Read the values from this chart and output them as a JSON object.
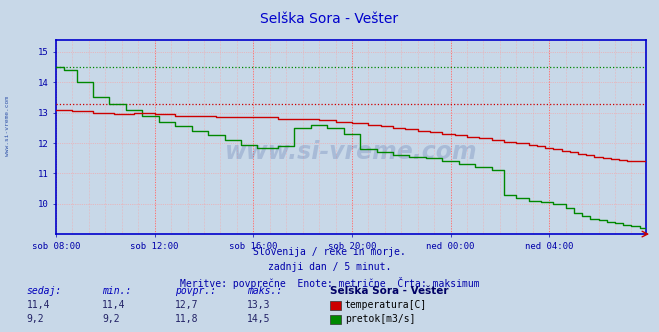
{
  "title": "Selška Sora - Vešter",
  "title_color": "#0000cc",
  "bg_color": "#c8d8e8",
  "plot_bg_color": "#c8d8e8",
  "axis_color": "#0000ff",
  "tick_color": "#0000aa",
  "xlim": [
    0,
    287
  ],
  "ylim": [
    9.0,
    15.4
  ],
  "yticks": [
    10,
    11,
    12,
    13,
    14,
    15
  ],
  "xtick_labels": [
    "sob 08:00",
    "sob 12:00",
    "sob 16:00",
    "sob 20:00",
    "ned 00:00",
    "ned 04:00"
  ],
  "xtick_positions": [
    0,
    48,
    96,
    144,
    192,
    240
  ],
  "temp_color": "#cc0000",
  "flow_color": "#008800",
  "temp_max": 13.3,
  "flow_max": 14.5,
  "temp_sedaj": 11.4,
  "temp_min": 11.4,
  "temp_povpr": 12.7,
  "flow_sedaj": 9.2,
  "flow_min": 9.2,
  "flow_povpr": 11.8,
  "footer_line1": "Slovenija / reke in morje.",
  "footer_line2": "zadnji dan / 5 minut.",
  "footer_line3": "Meritve: povprečne  Enote: metrične  Črta: maksimum",
  "footer_color": "#0000aa",
  "legend_title": "Selška Sora - Vešter",
  "legend_title_color": "#000066",
  "legend_temp_label": "temperatura[C]",
  "legend_flow_label": "pretok[m3/s]",
  "watermark": "www.si-vreme.com",
  "sidebar_text": "www.si-vreme.com",
  "sidebar_color": "#3355aa"
}
